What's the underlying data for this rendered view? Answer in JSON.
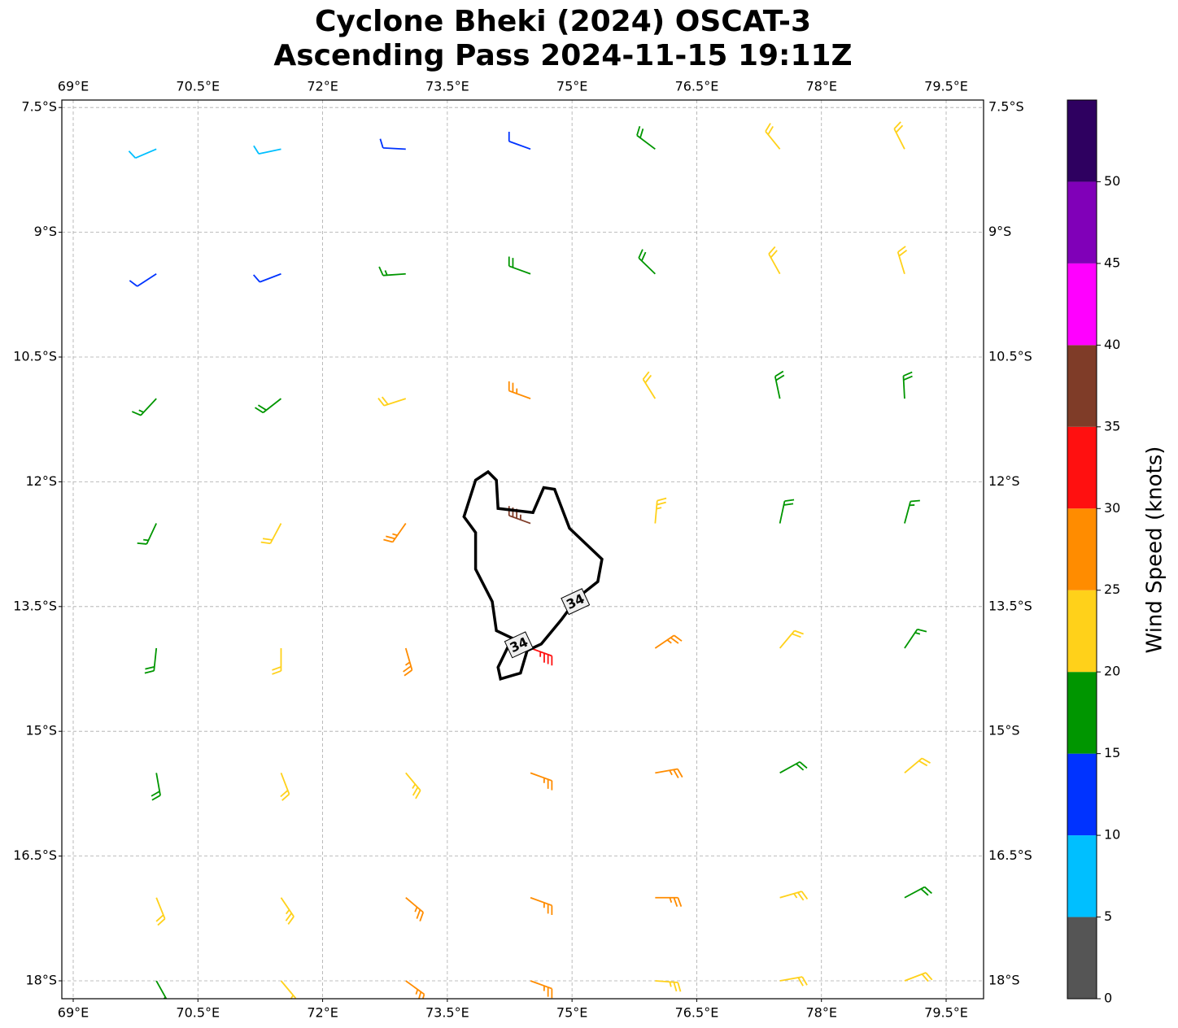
{
  "chart_data": {
    "type": "barbs",
    "title": [
      "Cyclone Bheki (2024) OSCAT-3",
      "Ascending Pass 2024-11-15 19:11Z"
    ],
    "xlim": [
      68.863,
      79.95
    ],
    "ylim": [
      -18.215,
      -7.41
    ],
    "xticks": [
      {
        "value": 69,
        "label": "69°E"
      },
      {
        "value": 70.5,
        "label": "70.5°E"
      },
      {
        "value": 72,
        "label": "72°E"
      },
      {
        "value": 73.5,
        "label": "73.5°E"
      },
      {
        "value": 75,
        "label": "75°E"
      },
      {
        "value": 76.5,
        "label": "76.5°E"
      },
      {
        "value": 78,
        "label": "78°E"
      },
      {
        "value": 79.5,
        "label": "79.5°E"
      }
    ],
    "yticks": [
      {
        "value": -7.5,
        "label": "7.5°S"
      },
      {
        "value": -9,
        "label": "9°S"
      },
      {
        "value": -10.5,
        "label": "10.5°S"
      },
      {
        "value": -12,
        "label": "12°S"
      },
      {
        "value": -13.5,
        "label": "13.5°S"
      },
      {
        "value": -15,
        "label": "15°S"
      },
      {
        "value": -16.5,
        "label": "16.5°S"
      },
      {
        "value": -18,
        "label": "18°S"
      }
    ],
    "grid": true,
    "barbs": {
      "lon": [
        70,
        71.5,
        73,
        74.5,
        76,
        77.5,
        79
      ],
      "lat": [
        -8,
        -9.5,
        -11,
        -12.5,
        -14,
        -15.5,
        -17,
        -18
      ],
      "speed": [
        [
          8,
          8,
          12,
          12,
          18,
          20,
          22
        ],
        [
          12,
          12,
          17,
          18,
          18,
          20,
          22
        ],
        [
          17,
          18,
          22,
          25,
          22,
          18,
          18
        ],
        [
          17,
          22,
          27,
          37,
          23,
          18,
          17
        ],
        [
          18,
          22,
          25,
          33,
          25,
          20,
          17
        ],
        [
          18,
          22,
          24,
          27,
          25,
          18,
          22
        ],
        [
          20,
          23,
          27,
          27,
          25,
          23,
          18
        ],
        [
          18,
          22,
          27,
          27,
          23,
          22,
          20
        ]
      ],
      "direction": [
        [
          247,
          258,
          273,
          290,
          307,
          321,
          333
        ],
        [
          237,
          249,
          266,
          290,
          314,
          331,
          343
        ],
        [
          223,
          232,
          252,
          290,
          328,
          348,
          357
        ],
        [
          205,
          208,
          215,
          290,
          5,
          12,
          15
        ],
        [
          186,
          180,
          164,
          110,
          56,
          40,
          34
        ],
        [
          170,
          159,
          140,
          110,
          80,
          61,
          50
        ],
        [
          158,
          146,
          130,
          110,
          90,
          74,
          62
        ],
        [
          151,
          140,
          126,
          110,
          94,
          80,
          69
        ]
      ]
    },
    "contour": {
      "level": 34,
      "lon": [
        73.99,
        74.09,
        74.11,
        74.53,
        74.66,
        74.79,
        74.97,
        75.36,
        75.31,
        75.07,
        74.87,
        74.63,
        74.46,
        74.38,
        74.14,
        74.11,
        74.28,
        74.09,
        74.04,
        73.84,
        73.84,
        73.7,
        73.84
      ],
      "lat": [
        -11.88,
        -11.98,
        -12.32,
        -12.37,
        -12.07,
        -12.09,
        -12.56,
        -12.93,
        -13.2,
        -13.39,
        -13.66,
        -13.95,
        -14.03,
        -14.3,
        -14.37,
        -14.23,
        -13.88,
        -13.79,
        -13.44,
        -13.05,
        -12.61,
        -12.42,
        -11.98
      ],
      "label_lon": [
        75.04,
        74.36
      ],
      "label_lat": [
        -13.44,
        -13.96
      ]
    },
    "colorbar": {
      "label": "Wind Speed (knots)",
      "bounds": [
        0,
        5,
        10,
        15,
        20,
        25,
        30,
        35,
        40,
        45,
        50,
        55
      ],
      "colors": [
        "#555555",
        "#00bfff",
        "#0033ff",
        "#009600",
        "#ffd11a",
        "#ff8c00",
        "#ff1010",
        "#7f3c28",
        "#ff00ff",
        "#8000b8",
        "#2e0060"
      ],
      "ylim": [
        0,
        55
      ],
      "yticks": [
        0,
        5,
        10,
        15,
        20,
        25,
        30,
        35,
        40,
        45,
        50
      ]
    }
  }
}
